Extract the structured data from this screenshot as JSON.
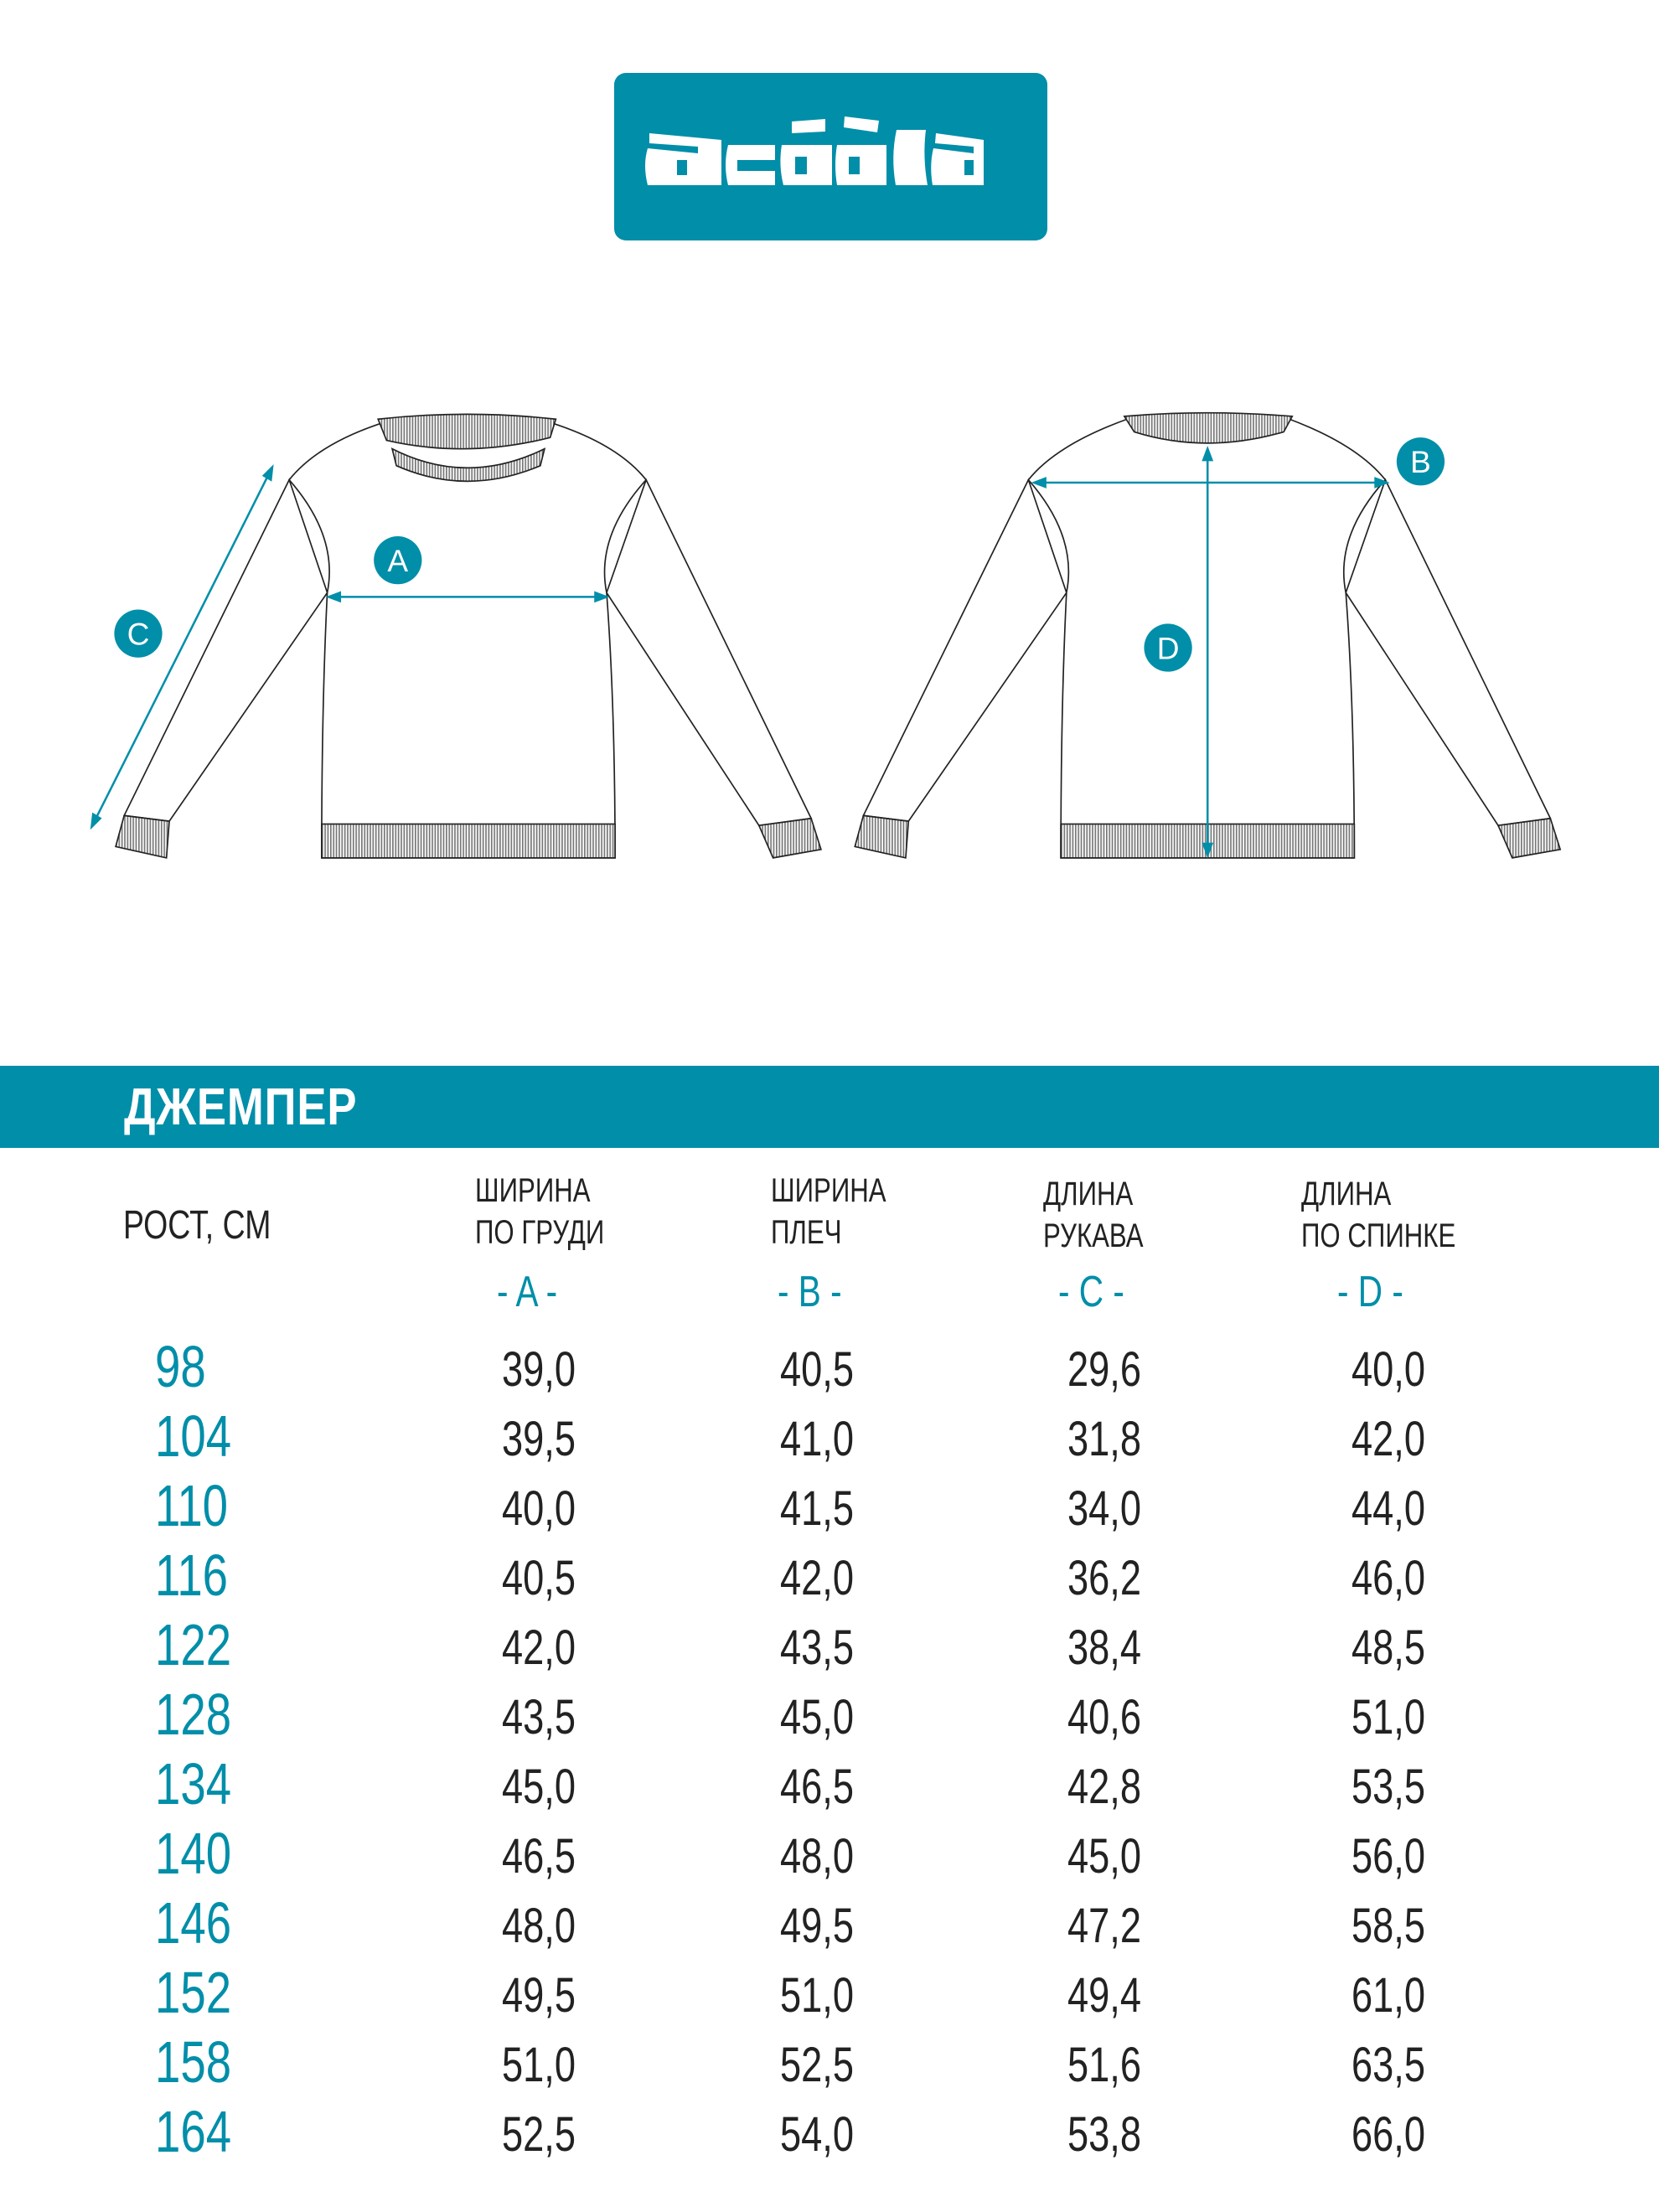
{
  "brand": {
    "logo_text": "acoola",
    "color": "#008ea9"
  },
  "product_title": "ДЖЕМПЕР",
  "diagram": {
    "labels": [
      "A",
      "B",
      "C",
      "D"
    ]
  },
  "table": {
    "header_height": "РОСТ, СМ",
    "columns": [
      {
        "line1": "ШИРИНА",
        "line2": "ПО ГРУДИ",
        "letter": "- A -"
      },
      {
        "line1": "ШИРИНА",
        "line2": "ПЛЕЧ",
        "letter": "- B -"
      },
      {
        "line1": "ДЛИНА",
        "line2": "РУКАВА",
        "letter": "- C -"
      },
      {
        "line1": "ДЛИНА",
        "line2": "ПО СПИНКЕ",
        "letter": "- D -"
      }
    ],
    "rows": [
      {
        "size": "98",
        "values": [
          "39,0",
          "40,5",
          "29,6",
          "40,0"
        ]
      },
      {
        "size": "104",
        "values": [
          "39,5",
          "41,0",
          "31,8",
          "42,0"
        ]
      },
      {
        "size": "110",
        "values": [
          "40,0",
          "41,5",
          "34,0",
          "44,0"
        ]
      },
      {
        "size": "116",
        "values": [
          "40,5",
          "42,0",
          "36,2",
          "46,0"
        ]
      },
      {
        "size": "122",
        "values": [
          "42,0",
          "43,5",
          "38,4",
          "48,5"
        ]
      },
      {
        "size": "128",
        "values": [
          "43,5",
          "45,0",
          "40,6",
          "51,0"
        ]
      },
      {
        "size": "134",
        "values": [
          "45,0",
          "46,5",
          "42,8",
          "53,5"
        ]
      },
      {
        "size": "140",
        "values": [
          "46,5",
          "48,0",
          "45,0",
          "56,0"
        ]
      },
      {
        "size": "146",
        "values": [
          "48,0",
          "49,5",
          "47,2",
          "58,5"
        ]
      },
      {
        "size": "152",
        "values": [
          "49,5",
          "51,0",
          "49,4",
          "61,0"
        ]
      },
      {
        "size": "158",
        "values": [
          "51,0",
          "52,5",
          "51,6",
          "63,5"
        ]
      },
      {
        "size": "164",
        "values": [
          "52,5",
          "54,0",
          "53,8",
          "66,0"
        ]
      }
    ]
  }
}
